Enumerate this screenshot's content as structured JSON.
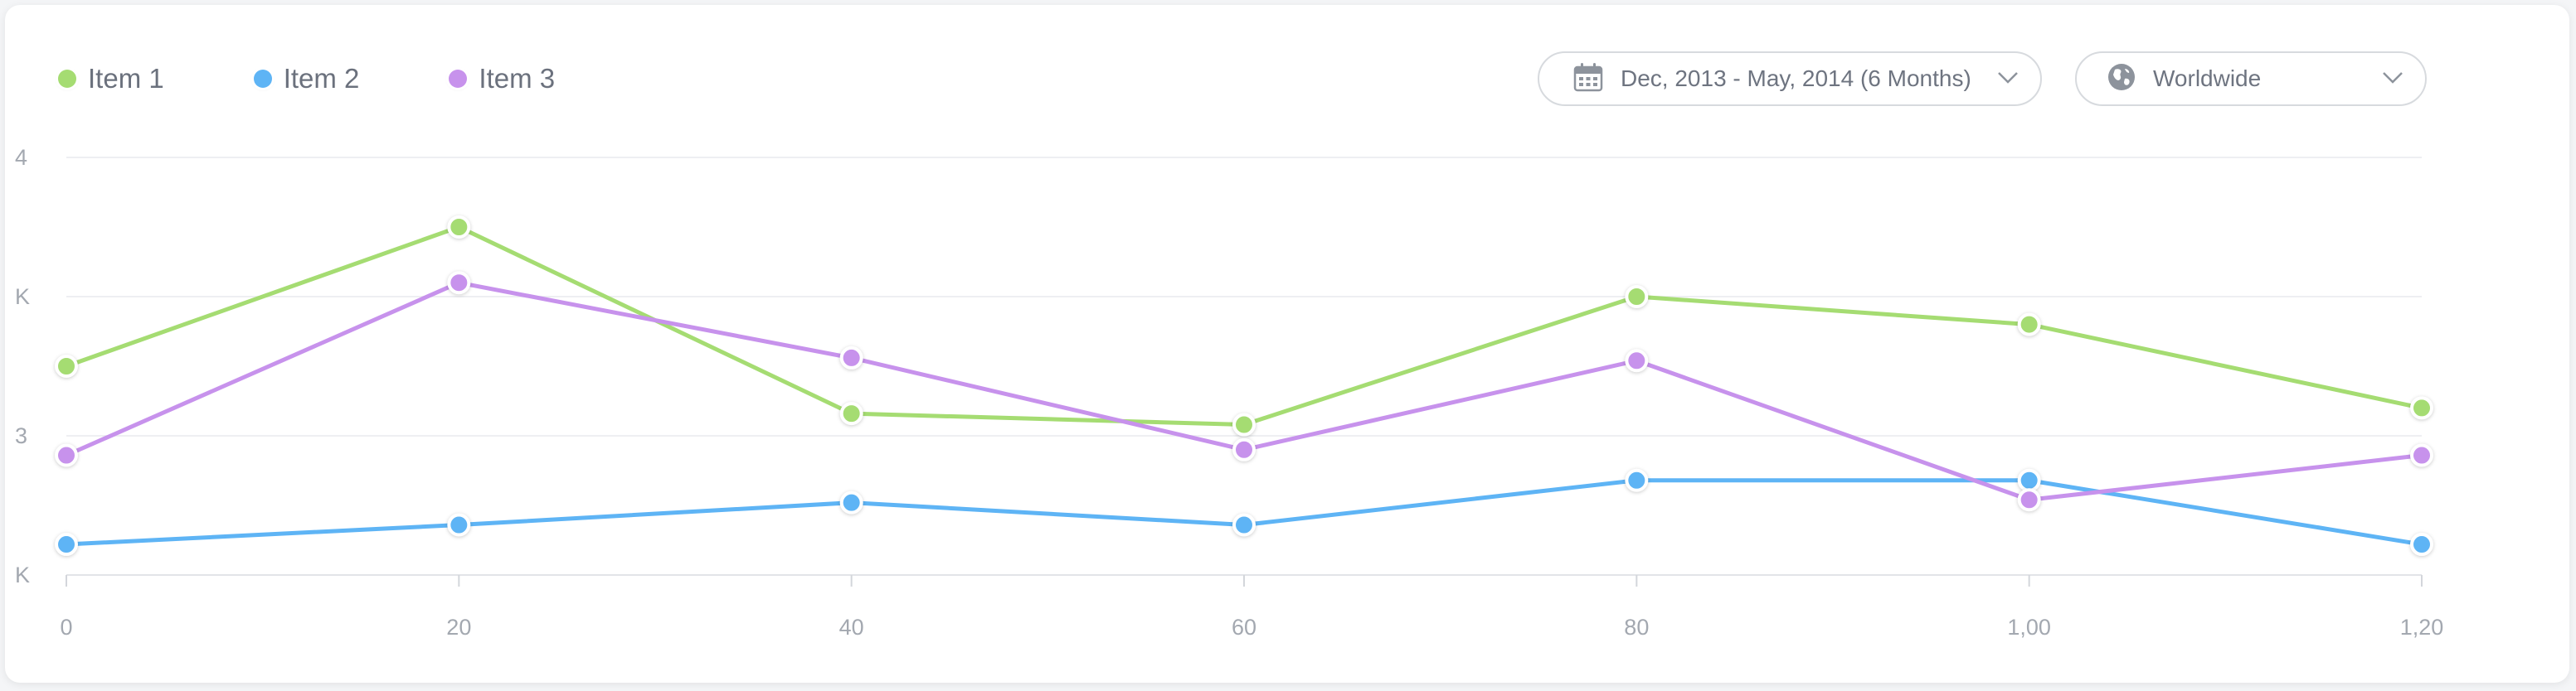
{
  "legend": {
    "items": [
      {
        "label": "Item 1",
        "color": "#a5dc72"
      },
      {
        "label": "Item 2",
        "color": "#5eb4f5"
      },
      {
        "label": "Item 3",
        "color": "#c792ec"
      }
    ]
  },
  "controls": {
    "date_range": "Dec, 2013 - May, 2014 (6 Months)",
    "date_icon": "calendar-icon",
    "region": "Worldwide",
    "region_icon": "globe-icon"
  },
  "chart_data": {
    "type": "line",
    "x": [
      0,
      20,
      40,
      60,
      80,
      100,
      120
    ],
    "x_tick_labels": [
      "0",
      "20",
      "40",
      "60",
      "80",
      "1,00",
      "1,20"
    ],
    "y_tick_labels": [
      "4",
      "K",
      "3",
      "K"
    ],
    "y_tick_values": [
      4,
      3.5,
      3,
      2.5
    ],
    "ylim": [
      2.5,
      4
    ],
    "grid": true,
    "legend_position": "top-left",
    "series": [
      {
        "name": "Item 1",
        "color": "#a5dc72",
        "values": [
          3.25,
          3.75,
          3.08,
          3.04,
          3.5,
          3.4,
          3.1
        ]
      },
      {
        "name": "Item 2",
        "color": "#5eb4f5",
        "values": [
          2.61,
          2.68,
          2.76,
          2.68,
          2.84,
          2.84,
          2.61
        ]
      },
      {
        "name": "Item 3",
        "color": "#c792ec",
        "values": [
          2.93,
          3.55,
          3.28,
          2.95,
          3.27,
          2.77,
          2.93
        ]
      }
    ]
  }
}
